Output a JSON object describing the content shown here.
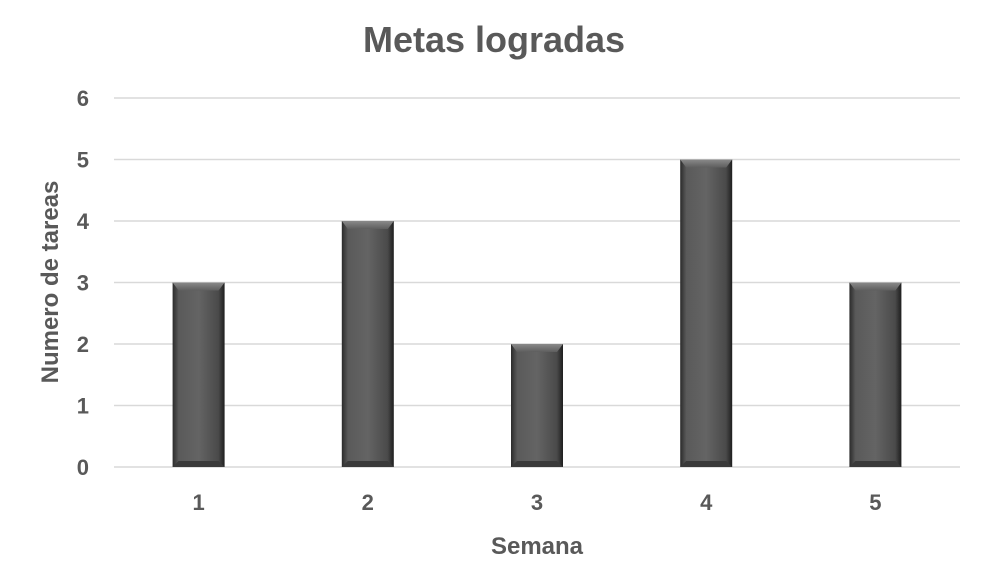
{
  "chart_data": {
    "type": "bar",
    "title": "Metas logradas",
    "xlabel": "Semana",
    "ylabel": "Numero de tareas",
    "categories": [
      "1",
      "2",
      "3",
      "4",
      "5"
    ],
    "values": [
      3,
      4,
      2,
      5,
      3
    ],
    "y_ticks": [
      "0",
      "1",
      "2",
      "3",
      "4",
      "5",
      "6"
    ],
    "ylim": [
      0,
      6
    ],
    "grid": true,
    "legend": "none",
    "colors": {
      "bar": "#595959",
      "bar_dark": "#262626",
      "bar_light": "#7f7f7f",
      "text": "#595959",
      "grid": "#d9d9d9"
    }
  }
}
